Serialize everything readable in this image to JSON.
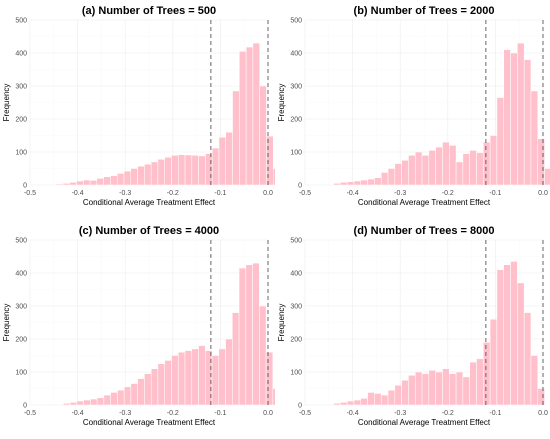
{
  "chart_data": [
    {
      "type": "bar",
      "title": "(a) Number of Trees = 500",
      "xlabel": "Conditional Average Treatment Effect",
      "ylabel": "Frequency",
      "xlim": [
        -0.5,
        0.0
      ],
      "ylim": [
        0,
        500
      ],
      "xticks": [
        "-0.5",
        "-0.4",
        "-0.3",
        "-0.2",
        "-0.1",
        "0.0"
      ],
      "yticks": [
        "0",
        "100",
        "200",
        "300",
        "400",
        "500"
      ],
      "bin_start": -0.445,
      "bin_width": 0.01425,
      "values": [
        3,
        5,
        8,
        12,
        15,
        14,
        20,
        25,
        28,
        35,
        42,
        50,
        57,
        63,
        70,
        78,
        84,
        90,
        92,
        91,
        90,
        88,
        95,
        112,
        145,
        160,
        285,
        405,
        418,
        430,
        300,
        148,
        50
      ],
      "vlines": [
        -0.12,
        0.0
      ],
      "grid": true
    },
    {
      "type": "bar",
      "title": "(b) Number of Trees = 2000",
      "xlabel": "Conditional Average Treatment Effect",
      "ylabel": "Frequency",
      "xlim": [
        -0.5,
        0.0
      ],
      "ylim": [
        0,
        500
      ],
      "xticks": [
        "-0.5",
        "-0.4",
        "-0.3",
        "-0.2",
        "-0.1",
        "0.0"
      ],
      "yticks": [
        "0",
        "100",
        "200",
        "300",
        "400",
        "500"
      ],
      "bin_start": -0.44,
      "bin_width": 0.0143,
      "values": [
        5,
        8,
        10,
        12,
        15,
        18,
        22,
        38,
        50,
        65,
        75,
        90,
        100,
        90,
        105,
        115,
        130,
        120,
        70,
        95,
        105,
        98,
        130,
        150,
        265,
        410,
        400,
        430,
        380,
        285,
        140,
        50
      ],
      "vlines": [
        -0.12,
        0.0
      ],
      "grid": true
    },
    {
      "type": "bar",
      "title": "(c) Number of Trees = 4000",
      "xlabel": "Conditional Average Treatment Effect",
      "ylabel": "Frequency",
      "xlim": [
        -0.5,
        0.0
      ],
      "ylim": [
        0,
        500
      ],
      "xticks": [
        "-0.5",
        "-0.4",
        "-0.3",
        "-0.2",
        "-0.1",
        "0.0"
      ],
      "yticks": [
        "0",
        "100",
        "200",
        "300",
        "400",
        "500"
      ],
      "bin_start": -0.43,
      "bin_width": 0.0142,
      "values": [
        5,
        8,
        12,
        15,
        18,
        22,
        30,
        38,
        45,
        55,
        65,
        80,
        95,
        110,
        125,
        135,
        150,
        160,
        165,
        170,
        180,
        165,
        150,
        170,
        200,
        280,
        415,
        425,
        430,
        300,
        160,
        50
      ],
      "vlines": [
        -0.12,
        0.0
      ],
      "grid": true
    },
    {
      "type": "bar",
      "title": "(d) Number of Trees = 8000",
      "xlabel": "Conditional Average Treatment Effect",
      "ylabel": "Frequency",
      "xlim": [
        -0.5,
        0.0
      ],
      "ylim": [
        0,
        500
      ],
      "xticks": [
        "-0.5",
        "-0.4",
        "-0.3",
        "-0.2",
        "-0.1",
        "0.0"
      ],
      "yticks": [
        "0",
        "100",
        "200",
        "300",
        "400",
        "500"
      ],
      "bin_start": -0.44,
      "bin_width": 0.0143,
      "values": [
        5,
        8,
        12,
        15,
        20,
        38,
        35,
        30,
        45,
        60,
        75,
        90,
        100,
        95,
        105,
        100,
        110,
        95,
        100,
        85,
        130,
        140,
        190,
        260,
        410,
        425,
        435,
        370,
        280,
        150,
        50
      ],
      "vlines": [
        -0.12,
        0.0
      ],
      "grid": true
    }
  ]
}
